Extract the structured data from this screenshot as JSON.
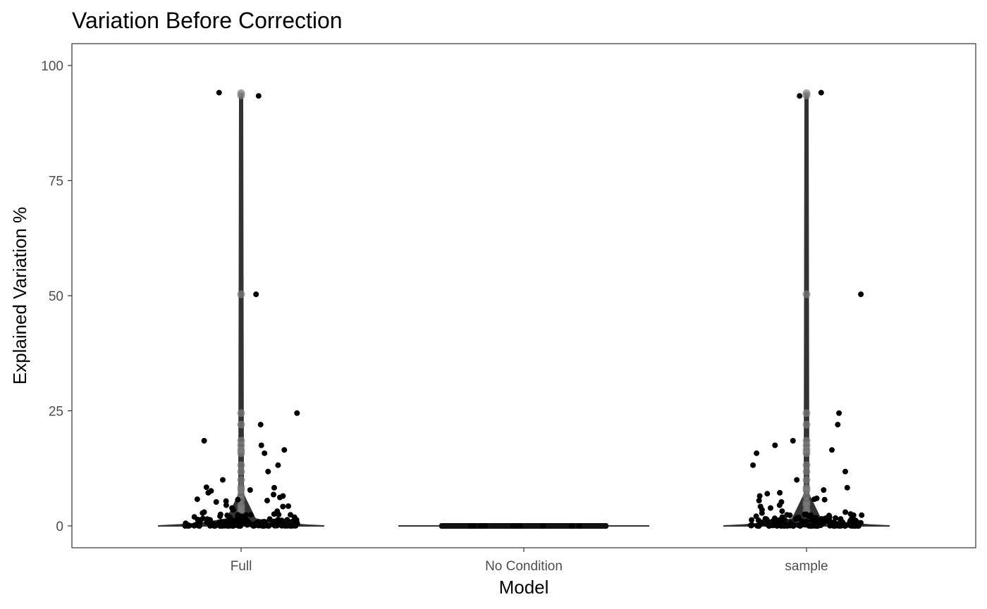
{
  "chart_data": {
    "type": "violin",
    "title": "Variation Before Correction",
    "xlabel": "Model",
    "ylabel": "Explained Variation %",
    "categories": [
      "Full",
      "No Condition",
      "sample"
    ],
    "ylim": [
      -5,
      104
    ],
    "yticks": [
      0,
      25,
      50,
      75,
      100
    ],
    "grid": false,
    "legend": "none",
    "colors": {
      "jitter_points": "#000000",
      "box_points": "#7f7f7f",
      "violin": "#333333",
      "panel_border": "#333333",
      "tick_text": "#4d4d4d",
      "full_accent": "#c0504d",
      "sample_accent": "#4f81bd"
    },
    "series": [
      {
        "category": "Full",
        "violin_max": 93.8,
        "jitter_points": [
          93.4,
          94.1,
          50.3,
          24.5,
          17.5,
          22.0,
          18.5,
          16.5,
          15.8,
          13.2,
          11.8,
          10.0,
          8.3,
          8.4,
          7.8,
          7.6,
          7.2,
          6.8,
          6.5,
          6.2,
          5.8,
          5.7,
          5.5,
          5.4,
          5.2,
          4.5,
          4.3,
          4.2,
          3.9,
          3.5,
          3.2,
          3.0,
          2.8,
          2.5,
          2.3,
          2.1,
          1.9,
          1.7,
          1.5,
          1.3,
          1.1,
          1.0,
          0.9,
          0.8,
          0.7,
          0.6,
          0.5,
          0.4,
          0.3,
          0.2,
          0.1,
          0.05,
          0.0
        ],
        "box_points": [
          94.0,
          93.5,
          50.3,
          24.5,
          22.0,
          18.5,
          17.5,
          16.5,
          15.8,
          13.2,
          11.8,
          10.0,
          8.4,
          7.8,
          6.8,
          5.7,
          4.5,
          3.9,
          3.2,
          2.5
        ]
      },
      {
        "category": "No Condition",
        "violin_max": 0.2,
        "jitter_points": [
          0.0,
          0.0,
          0.0,
          0.0,
          0.0,
          0.0,
          0.0,
          0.0,
          0.0,
          0.0
        ],
        "box_points": []
      },
      {
        "category": "sample",
        "violin_max": 93.8,
        "jitter_points": [
          93.4,
          94.1,
          50.3,
          24.5,
          22.0,
          18.5,
          17.5,
          16.5,
          15.8,
          13.2,
          11.8,
          10.0,
          8.3,
          7.8,
          7.2,
          7.0,
          6.5,
          6.0,
          5.8,
          5.7,
          5.5,
          5.2,
          4.5,
          4.2,
          3.9,
          3.5,
          3.2,
          3.0,
          2.8,
          2.5,
          2.3,
          2.1,
          1.9,
          1.7,
          1.5,
          1.3,
          1.1,
          1.0,
          0.9,
          0.8,
          0.7,
          0.6,
          0.5,
          0.4,
          0.3,
          0.2,
          0.1,
          0.05,
          0.0
        ],
        "box_points": [
          94.0,
          93.5,
          50.3,
          24.5,
          22.0,
          18.5,
          17.5,
          16.5,
          15.8,
          13.2,
          11.8,
          10.0,
          8.3,
          7.8,
          6.5,
          5.2,
          4.5,
          3.5,
          2.8
        ]
      }
    ]
  }
}
